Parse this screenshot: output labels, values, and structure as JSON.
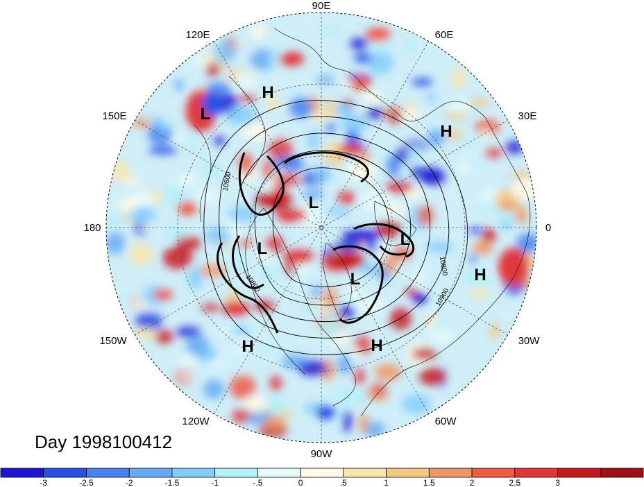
{
  "map": {
    "projection": "north-polar-stereographic",
    "lon_labels": {
      "top": "90E",
      "upper_left": "120E",
      "upper_right": "60E",
      "left_upper": "150E",
      "right_upper": "30E",
      "left": "180",
      "right": "0",
      "left_lower": "150W",
      "right_lower": "30W",
      "lower_left": "120W",
      "lower_right": "60W",
      "bottom": "90W"
    },
    "pressure_centers": [
      "H",
      "L",
      "H",
      "L",
      "L",
      "L",
      "L",
      "H",
      "H",
      "H"
    ],
    "contour_labels": [
      "10800",
      "10800",
      "10800",
      "10900"
    ]
  },
  "title": "Day 1998100412",
  "colorbar": {
    "colors": [
      "#1e14d2",
      "#2850e6",
      "#4682f0",
      "#64aaf5",
      "#82cdfa",
      "#b4f0fa",
      "#e6fcfc",
      "#fffae6",
      "#fae6aa",
      "#f5c882",
      "#f09664",
      "#f05a46",
      "#e1373c",
      "#c8191e",
      "#a00f14"
    ],
    "ticks": [
      "-3",
      "-2.5",
      "-2",
      "-1.5",
      "-1",
      "-.5",
      "0",
      ".5",
      "1",
      "1.5",
      "2",
      "2.5",
      "3"
    ]
  }
}
